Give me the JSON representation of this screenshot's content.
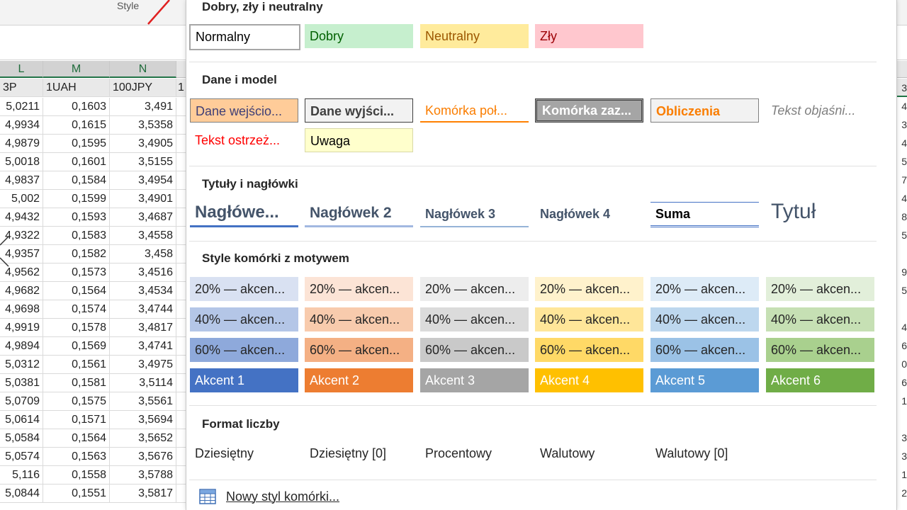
{
  "ribbon": {
    "group_label": "Style"
  },
  "sheet": {
    "columns": [
      "L",
      "M",
      "N"
    ],
    "header_row": [
      "3P",
      "1UAH",
      "100JPY",
      "1"
    ],
    "rows": [
      [
        "5,0211",
        "0,1603",
        "3,491"
      ],
      [
        "4,9934",
        "0,1615",
        "3,5358"
      ],
      [
        "4,9879",
        "0,1595",
        "3,4905"
      ],
      [
        "5,0018",
        "0,1601",
        "3,5155"
      ],
      [
        "4,9837",
        "0,1584",
        "3,4954"
      ],
      [
        "5,002",
        "0,1599",
        "3,4901"
      ],
      [
        "4,9432",
        "0,1593",
        "3,4687"
      ],
      [
        "4,9322",
        "0,1583",
        "3,4558"
      ],
      [
        "4,9357",
        "0,1582",
        "3,458"
      ],
      [
        "4,9562",
        "0,1573",
        "3,4516"
      ],
      [
        "4,9682",
        "0,1564",
        "3,4534"
      ],
      [
        "4,9698",
        "0,1574",
        "3,4744"
      ],
      [
        "4,9919",
        "0,1578",
        "3,4817"
      ],
      [
        "4,9894",
        "0,1569",
        "3,4741"
      ],
      [
        "5,0312",
        "0,1561",
        "3,4975"
      ],
      [
        "5,0381",
        "0,1581",
        "3,5114"
      ],
      [
        "5,0709",
        "0,1575",
        "3,5561"
      ],
      [
        "5,0614",
        "0,1571",
        "3,5694"
      ],
      [
        "5,0584",
        "0,1564",
        "3,5652"
      ],
      [
        "5,0574",
        "0,1563",
        "3,5676"
      ],
      [
        "5,116",
        "0,1558",
        "3,5788"
      ],
      [
        "5,0844",
        "0,1551",
        "3,5817"
      ]
    ],
    "right_edge_digits": [
      "3",
      "4",
      "3",
      "4",
      "5",
      "7",
      "4",
      "8",
      "5",
      "",
      "9",
      "5",
      "",
      "4",
      "6",
      "0",
      "6",
      "1",
      "",
      "3",
      "3",
      "1",
      "2"
    ]
  },
  "gallery": {
    "sections": {
      "good_bad": "Dobry, zły i neutralny",
      "data_model": "Dane i model",
      "titles": "Tytuły i nagłówki",
      "themed": "Style komórki z motywem",
      "number": "Format liczby"
    },
    "good_bad": [
      "Normalny",
      "Dobry",
      "Neutralny",
      "Zły"
    ],
    "data_model": [
      "Dane wejścio...",
      "Dane wyjści...",
      "Komórka poł...",
      "Komórka zaz...",
      "Obliczenia",
      "Tekst objaśni...",
      "Tekst ostrzeż...",
      "Uwaga"
    ],
    "titles": [
      "Nagłówe...",
      "Nagłówek 2",
      "Nagłówek 3",
      "Nagłówek 4",
      "Suma",
      "Tytuł"
    ],
    "themed": {
      "p20": "20% — akcen...",
      "p40": "40% — akcen...",
      "p60": "60% — akcen...",
      "accents": [
        "Akcent 1",
        "Akcent 2",
        "Akcent 3",
        "Akcent 4",
        "Akcent 5",
        "Akcent 6"
      ]
    },
    "number": [
      "Dziesiętny",
      "Dziesiętny [0]",
      "Procentowy",
      "Walutowy",
      "Walutowy [0]"
    ],
    "footer": {
      "new_style": "Nowy styl komórki..."
    }
  },
  "colors": {
    "excel_green": "#217346",
    "good_bg": "#c6efce",
    "good_fg": "#006100",
    "neutral_bg": "#ffeb9c",
    "neutral_fg": "#9c5700",
    "bad_bg": "#ffc7ce",
    "bad_fg": "#9c0006",
    "accent1": "#4472c4",
    "accent2": "#ed7d31",
    "accent3": "#a5a5a5",
    "accent4": "#ffc000",
    "accent5": "#5b9bd5",
    "accent6": "#70ad47"
  }
}
